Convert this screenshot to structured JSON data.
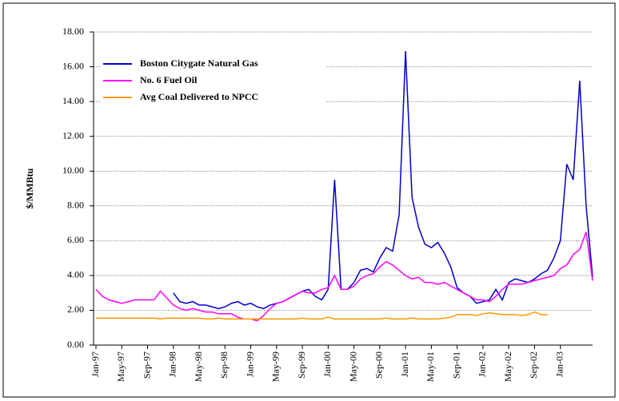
{
  "chart_data": {
    "type": "line",
    "ylabel": "$/MMBtu",
    "categories": [
      "Jan-97",
      null,
      null,
      null,
      "May-97",
      null,
      null,
      null,
      "Sep-97",
      null,
      null,
      null,
      "Jan-98",
      null,
      null,
      null,
      "May-98",
      null,
      null,
      null,
      "Sep-98",
      null,
      null,
      null,
      "Jan-99",
      null,
      null,
      null,
      "May-99",
      null,
      null,
      null,
      "Sep-99",
      null,
      null,
      null,
      "Jan-00",
      null,
      null,
      null,
      "May-00",
      null,
      null,
      null,
      "Sep-00",
      null,
      null,
      null,
      "Jan-01",
      null,
      null,
      null,
      "May-01",
      null,
      null,
      null,
      "Sep-01",
      null,
      null,
      null,
      "Jan-02",
      null,
      null,
      null,
      "May-02",
      null,
      null,
      null,
      "Sep-02",
      null,
      null,
      null,
      "Jan-03",
      null,
      null,
      null,
      null,
      null
    ],
    "series": [
      {
        "name": "Boston Citygate Natural Gas",
        "color": "#0000cc",
        "values": [
          null,
          null,
          null,
          null,
          null,
          null,
          null,
          null,
          null,
          null,
          null,
          null,
          3.0,
          2.5,
          2.4,
          2.5,
          2.3,
          2.3,
          2.2,
          2.1,
          2.2,
          2.4,
          2.5,
          2.3,
          2.4,
          2.2,
          2.1,
          2.3,
          2.4,
          2.5,
          2.7,
          2.9,
          3.1,
          3.2,
          2.8,
          2.6,
          3.2,
          9.5,
          3.2,
          3.2,
          3.6,
          4.3,
          4.4,
          4.2,
          5.0,
          5.6,
          5.4,
          7.5,
          16.9,
          8.5,
          6.8,
          5.8,
          5.6,
          5.9,
          5.3,
          4.5,
          3.3,
          3.0,
          2.8,
          2.4,
          2.5,
          2.6,
          3.2,
          2.6,
          3.6,
          3.8,
          3.7,
          3.6,
          3.8,
          4.1,
          4.3,
          5.0,
          6.0,
          10.4,
          9.5,
          15.2,
          8.0,
          3.9
        ]
      },
      {
        "name": "No. 6 Fuel Oil",
        "color": "#ff00ff",
        "values": [
          3.2,
          2.8,
          2.6,
          2.5,
          2.4,
          2.5,
          2.6,
          2.6,
          2.6,
          2.6,
          3.1,
          2.7,
          2.3,
          2.1,
          2.0,
          2.1,
          2.0,
          1.9,
          1.9,
          1.8,
          1.8,
          1.8,
          1.6,
          1.5,
          1.5,
          1.4,
          1.7,
          2.1,
          2.4,
          2.5,
          2.7,
          2.9,
          3.1,
          3.0,
          3.0,
          3.2,
          3.3,
          4.0,
          3.2,
          3.2,
          3.4,
          3.8,
          4.0,
          4.1,
          4.5,
          4.8,
          4.6,
          4.3,
          4.0,
          3.8,
          3.9,
          3.6,
          3.6,
          3.5,
          3.6,
          3.4,
          3.2,
          3.0,
          2.8,
          2.6,
          2.6,
          2.5,
          2.8,
          3.2,
          3.5,
          3.5,
          3.5,
          3.6,
          3.7,
          3.8,
          3.9,
          4.0,
          4.4,
          4.6,
          5.2,
          5.5,
          6.5,
          3.7
        ]
      },
      {
        "name": "Avg Coal Delivered to NPCC",
        "color": "#ff9900",
        "values": [
          1.55,
          1.55,
          1.55,
          1.55,
          1.55,
          1.55,
          1.55,
          1.55,
          1.55,
          1.55,
          1.5,
          1.55,
          1.55,
          1.55,
          1.55,
          1.55,
          1.55,
          1.5,
          1.5,
          1.55,
          1.5,
          1.5,
          1.5,
          1.5,
          1.5,
          1.5,
          1.5,
          1.5,
          1.5,
          1.5,
          1.5,
          1.5,
          1.55,
          1.5,
          1.5,
          1.5,
          1.6,
          1.5,
          1.5,
          1.5,
          1.5,
          1.5,
          1.5,
          1.5,
          1.5,
          1.55,
          1.5,
          1.5,
          1.5,
          1.55,
          1.5,
          1.5,
          1.5,
          1.5,
          1.55,
          1.6,
          1.75,
          1.75,
          1.75,
          1.7,
          1.8,
          1.85,
          1.8,
          1.75,
          1.75,
          1.75,
          1.7,
          1.75,
          1.9,
          1.75,
          1.75,
          null,
          null,
          null,
          null,
          null,
          null,
          null
        ]
      }
    ],
    "ylim": [
      0,
      18
    ],
    "yticks": [
      {
        "value": 0,
        "label": "0.00"
      },
      {
        "value": 2,
        "label": "2.00"
      },
      {
        "value": 4,
        "label": "4.00"
      },
      {
        "value": 6,
        "label": "6.00"
      },
      {
        "value": 8,
        "label": "8.00"
      },
      {
        "value": 10,
        "label": "10.00"
      },
      {
        "value": 12,
        "label": "12.00"
      },
      {
        "value": 14,
        "label": "14.00"
      },
      {
        "value": 16,
        "label": "16.00"
      },
      {
        "value": 18,
        "label": "18.00"
      }
    ],
    "grid": true,
    "legend": "upper left"
  }
}
